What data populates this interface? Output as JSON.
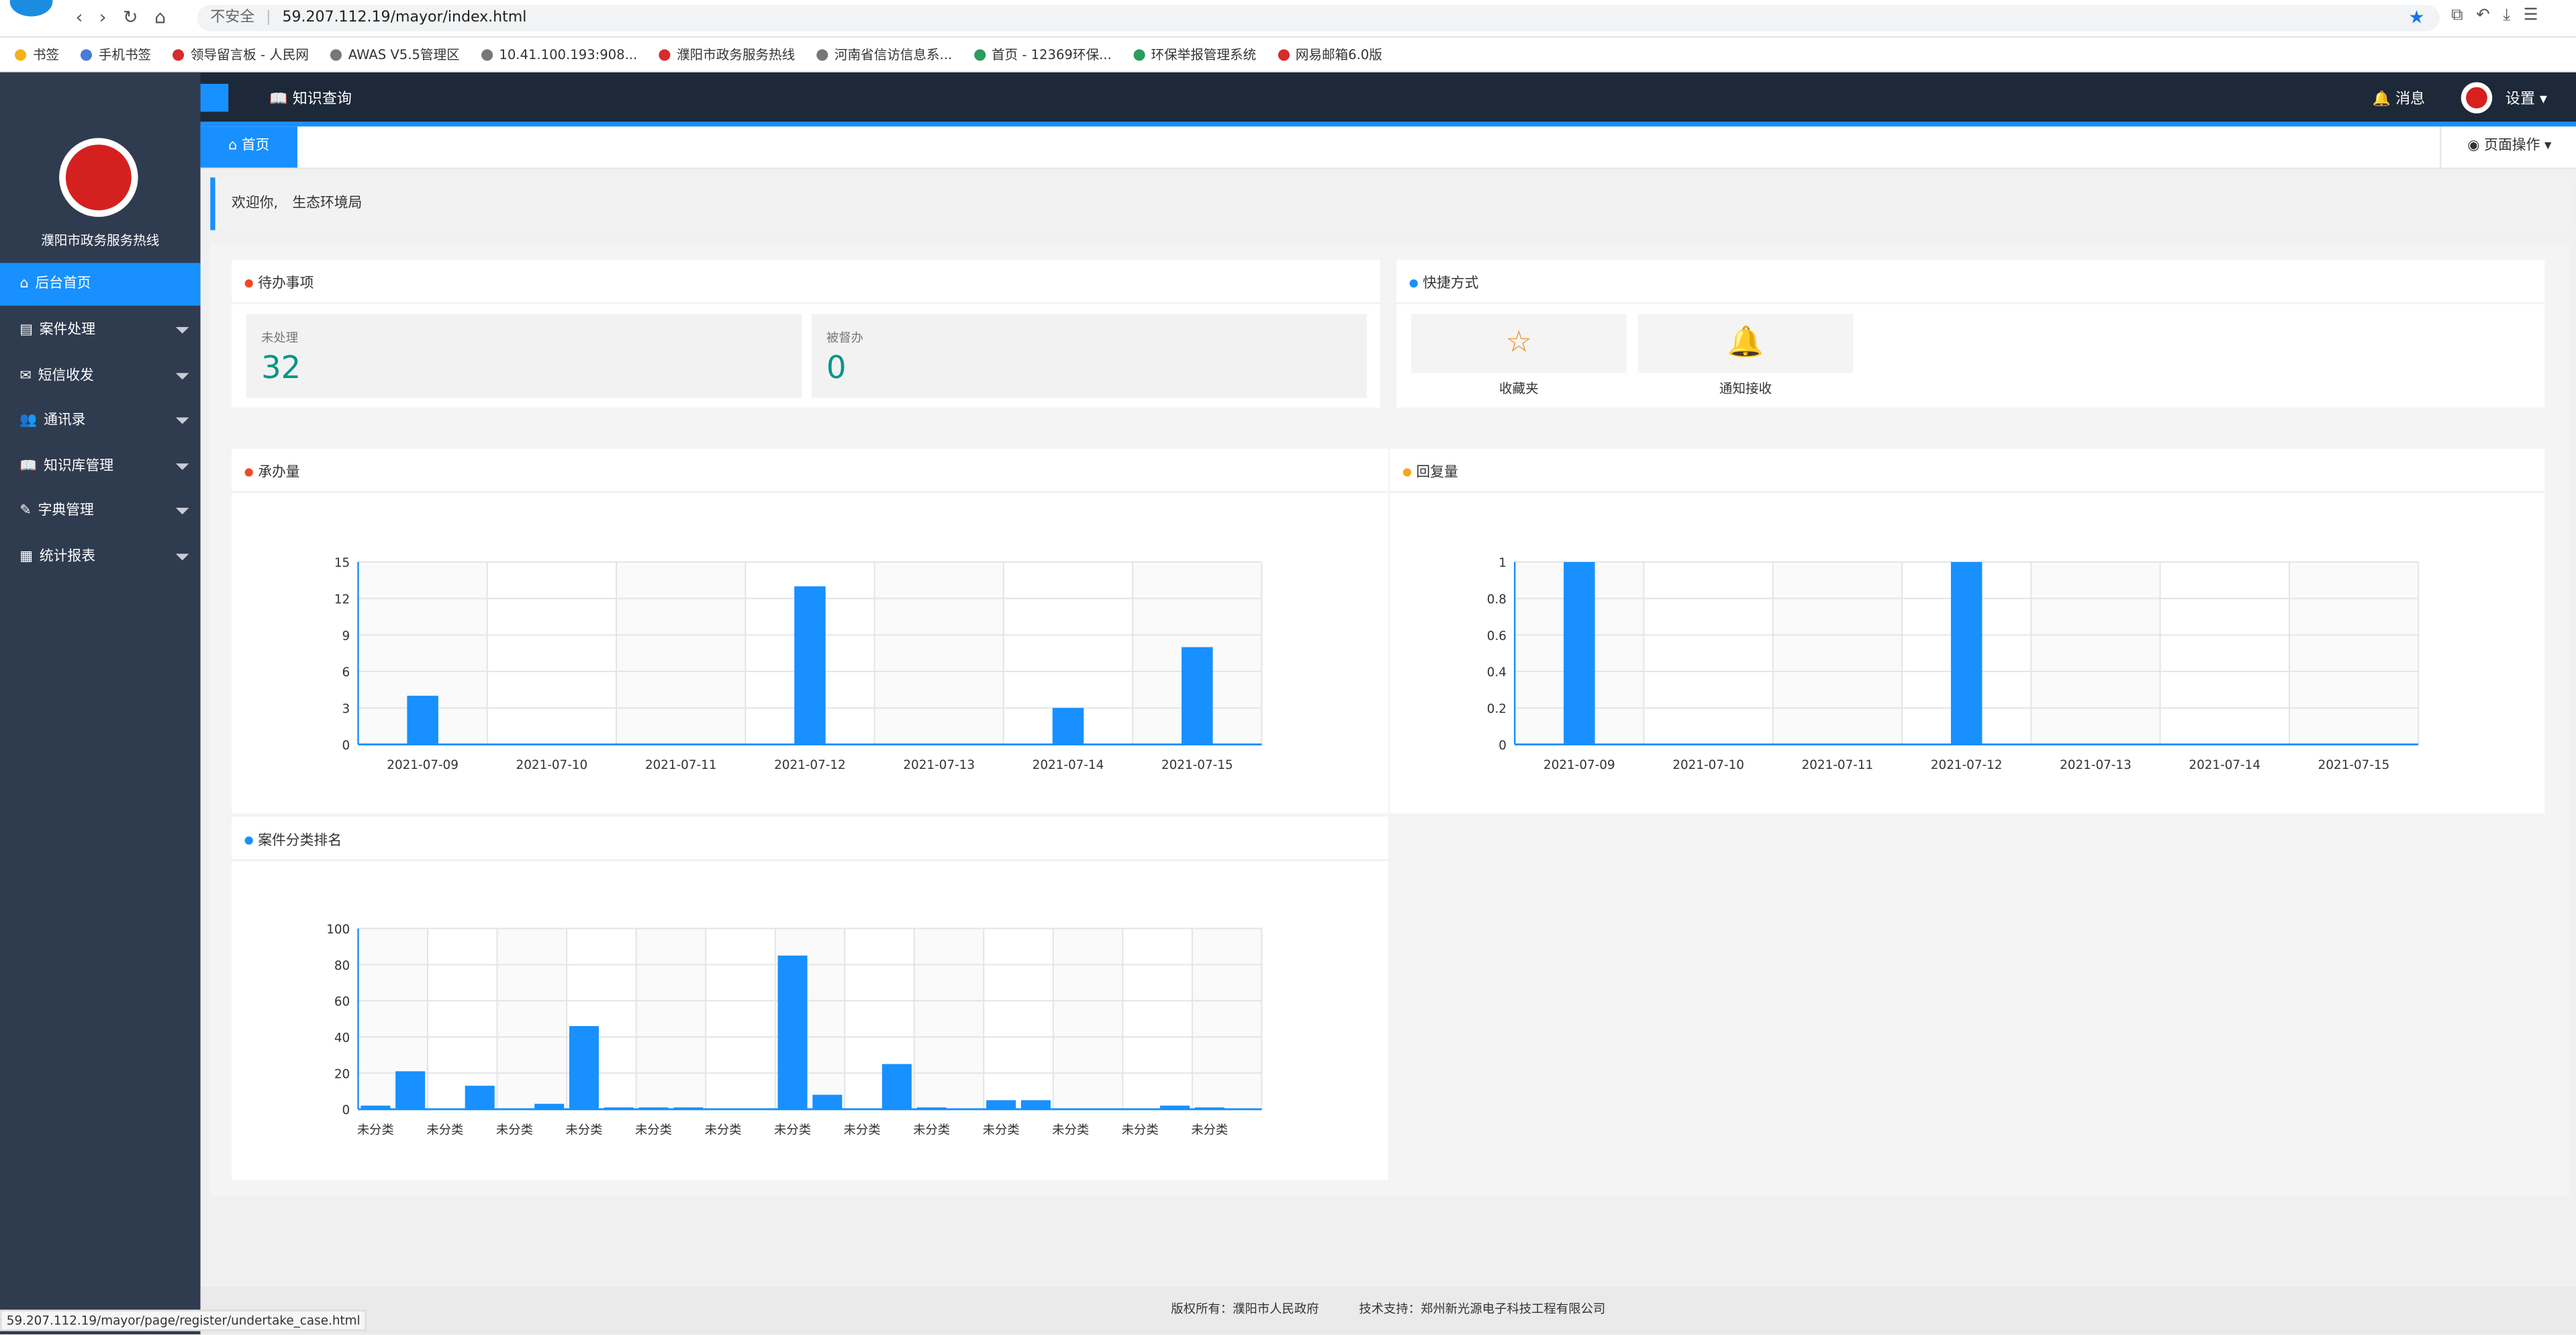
{
  "browser": {
    "security": "不安全",
    "url": "59.207.112.19/mayor/index.html"
  },
  "bookmarks": [
    "书签",
    "手机书签",
    "领导留言板 - 人民网",
    "AWAS V5.5管理区",
    "10.41.100.193:908...",
    "濮阳市政务服务热线",
    "河南省信访信息系...",
    "首页 - 12369环保...",
    "环保举报管理系统",
    "网易邮箱6.0版"
  ],
  "nav": {
    "menu": "知识查询",
    "messages": "消息",
    "settings": "设置"
  },
  "sidebar": {
    "title": "濮阳市政务服务热线",
    "menu": [
      "后台首页",
      "案件处理",
      "短信收发",
      "通讯录",
      "知识库管理",
      "字典管理",
      "统计报表"
    ]
  },
  "tabs": {
    "home": "首页",
    "page_ops": "页面操作"
  },
  "welcome": {
    "greeting": "欢迎你,",
    "dept": "生态环境局"
  },
  "todo": {
    "title": "待办事项",
    "items": [
      {
        "label": "未处理",
        "value": 32
      },
      {
        "label": "被督办",
        "value": 0
      }
    ]
  },
  "shortcuts": {
    "title": "快捷方式",
    "items": [
      "收藏夹",
      "通知接收"
    ]
  },
  "chart_data": [
    {
      "type": "bar",
      "title": "承办量",
      "color": "#1890ff",
      "categories": [
        "2021-07-09",
        "2021-07-10",
        "2021-07-11",
        "2021-07-12",
        "2021-07-13",
        "2021-07-14",
        "2021-07-15"
      ],
      "values": [
        4,
        0,
        0,
        13,
        0,
        3,
        8
      ],
      "ylim": [
        0,
        15
      ],
      "yticks": [
        0,
        3,
        6,
        9,
        12,
        15
      ],
      "grid": true
    },
    {
      "type": "bar",
      "title": "回复量",
      "color": "#1890ff",
      "categories": [
        "2021-07-09",
        "2021-07-10",
        "2021-07-11",
        "2021-07-12",
        "2021-07-13",
        "2021-07-14",
        "2021-07-15"
      ],
      "values": [
        1,
        0,
        0,
        1,
        0,
        0,
        0
      ],
      "ylim": [
        0,
        1
      ],
      "yticks": [
        0,
        0.2,
        0.4,
        0.6,
        0.8,
        1
      ],
      "grid": true
    },
    {
      "type": "bar",
      "title": "案件分类排名",
      "color": "#1890ff",
      "categories": [
        "未分类",
        null,
        "未分类",
        null,
        "未分类",
        null,
        "未分类",
        null,
        "未分类",
        null,
        "未分类",
        null,
        "未分类",
        null,
        "未分类",
        null,
        "未分类",
        null,
        "未分类",
        null,
        "未分类",
        null,
        "未分类",
        null,
        "未分类",
        null
      ],
      "values": [
        2,
        21,
        0,
        13,
        0,
        3,
        46,
        1,
        1,
        1,
        0,
        0,
        85,
        8,
        0,
        25,
        1,
        0,
        5,
        5,
        0,
        0,
        0,
        2,
        1,
        0
      ],
      "ylim": [
        0,
        100
      ],
      "yticks": [
        0,
        20,
        40,
        60,
        80,
        100
      ],
      "grid": true
    }
  ],
  "footer": {
    "copyright": "版权所有：濮阳市人民政府",
    "support": "技术支持：郑州新光源电子科技工程有限公司"
  },
  "status_url": "59.207.112.19/mayor/page/register/undertake_case.html"
}
